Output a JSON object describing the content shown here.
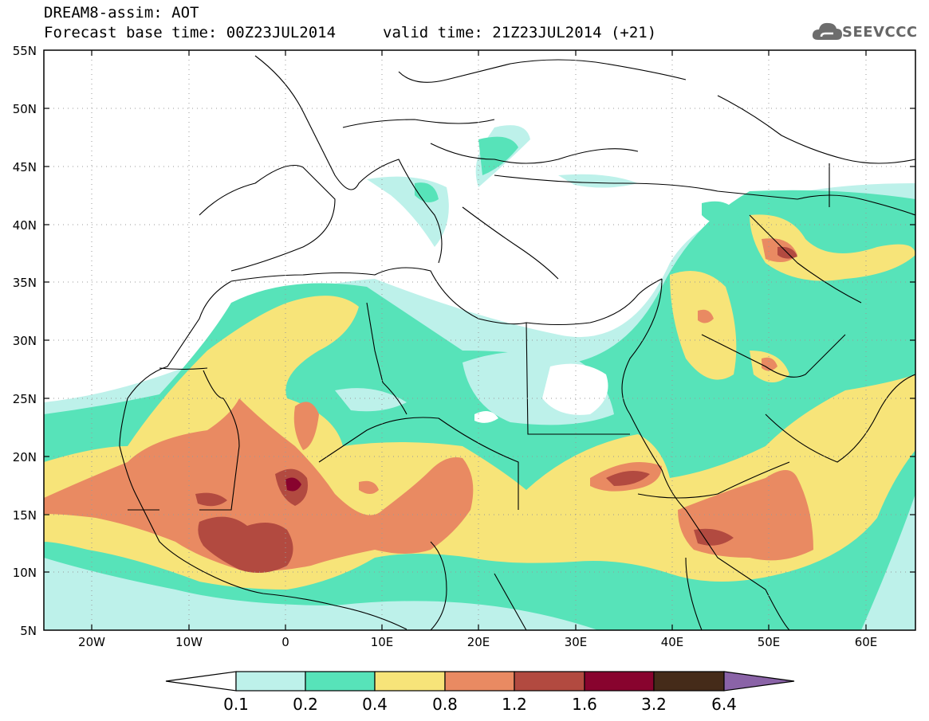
{
  "header": {
    "line1": "DREAM8-assim: AOT",
    "line2": "Forecast base time: 00Z23JUL2014",
    "valid": "valid time: 21Z23JUL2014 (+21)",
    "logo_text": "SEEVCCC"
  },
  "map": {
    "lat_labels": [
      "55N",
      "50N",
      "45N",
      "40N",
      "35N",
      "30N",
      "25N",
      "20N",
      "15N",
      "10N",
      "5N"
    ],
    "lon_labels": [
      "20W",
      "10W",
      "0",
      "10E",
      "20E",
      "30E",
      "40E",
      "50E",
      "60E"
    ],
    "lat_range": [
      5,
      55
    ],
    "lon_range": [
      -25,
      65
    ]
  },
  "colorbar": {
    "labels": [
      "0.1",
      "0.2",
      "0.4",
      "0.8",
      "1.2",
      "1.6",
      "3.2",
      "6.4"
    ],
    "colors": [
      "#ffffff",
      "#bdf1ea",
      "#57e3b9",
      "#f7e479",
      "#e98a62",
      "#b24a40",
      "#88032e",
      "#452b19",
      "#8a63a7"
    ]
  },
  "icons": {
    "logo": "cloud-icon"
  }
}
